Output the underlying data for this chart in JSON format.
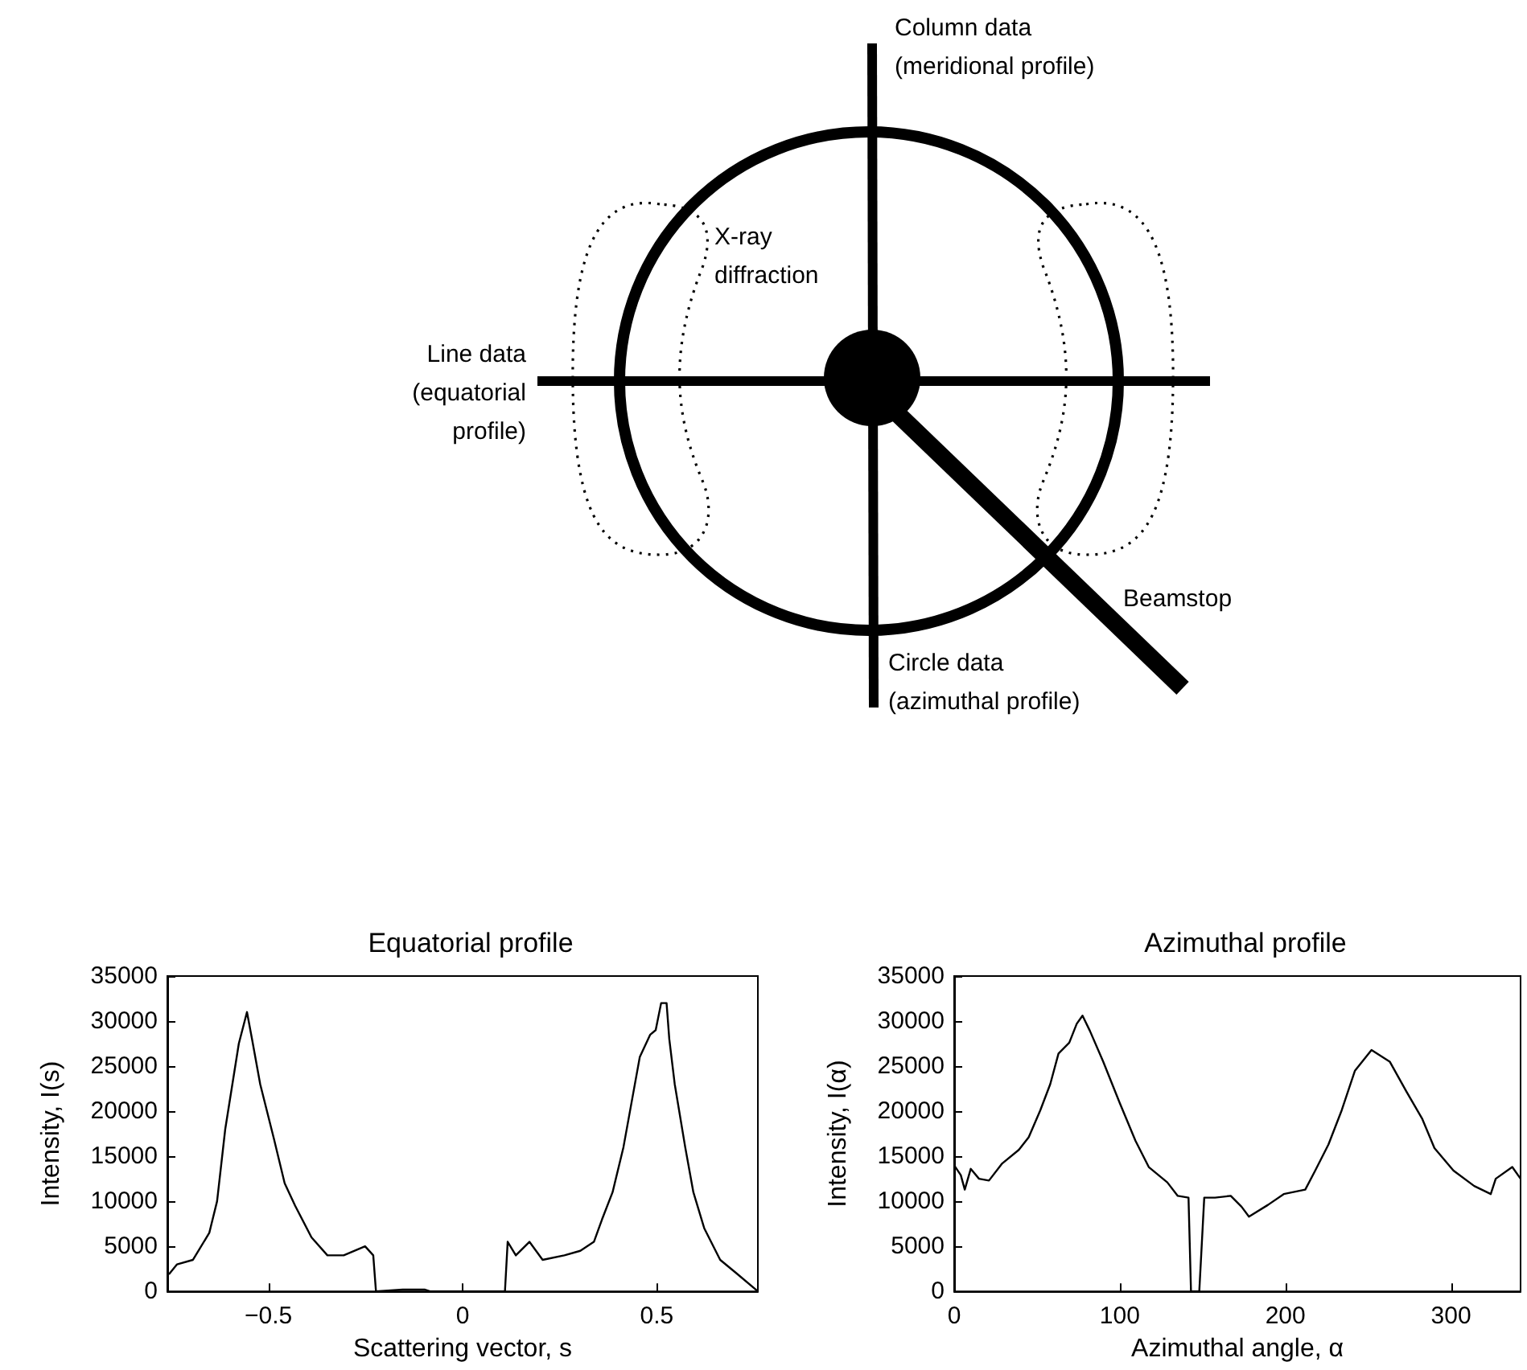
{
  "chart_data": [
    {
      "type": "other",
      "annotations": [
        "Column data\n(meridional profile)",
        "X-ray\ndiffraction",
        "Line data\n(equatorial\nprofile)",
        "Beamstop",
        "Circle data\n(azimuthal profile)"
      ]
    },
    {
      "type": "line",
      "title": "Equatorial profile",
      "xlabel": "Scattering vector, s",
      "ylabel": "Intensity, I(s)",
      "x": [
        -0.756,
        -0.735,
        -0.694,
        -0.652,
        -0.632,
        -0.611,
        -0.576,
        -0.555,
        -0.542,
        -0.521,
        -0.486,
        -0.458,
        -0.431,
        -0.389,
        -0.348,
        -0.306,
        -0.251,
        -0.23,
        -0.223,
        -0.154,
        -0.098,
        -0.084,
        0.109,
        0.116,
        0.137,
        0.172,
        0.206,
        0.262,
        0.303,
        0.338,
        0.359,
        0.386,
        0.414,
        0.435,
        0.456,
        0.483,
        0.497,
        0.511,
        0.525,
        0.532,
        0.546,
        0.573,
        0.594,
        0.622,
        0.663,
        0.705,
        0.76
      ],
      "series": [
        {
          "color": "#000000",
          "values": [
            1900,
            3000,
            3500,
            6500,
            10000,
            18000,
            27500,
            31000,
            28000,
            23000,
            17000,
            12000,
            9500,
            6000,
            4000,
            4000,
            5000,
            4000,
            0,
            200,
            200,
            0,
            0,
            5500,
            4000,
            5500,
            3500,
            4000,
            4500,
            5500,
            8000,
            11000,
            16000,
            21000,
            26000,
            28500,
            29000,
            32000,
            32000,
            28000,
            23000,
            16000,
            11000,
            7000,
            3500,
            2000,
            0
          ]
        }
      ],
      "xlim": [
        -0.76,
        0.76
      ],
      "xticks": [
        {
          "value": -0.5,
          "label": "−0.5"
        },
        0,
        0.5
      ],
      "ylim": [
        0,
        35000
      ],
      "yticks": [
        0,
        5000,
        10000,
        15000,
        20000,
        25000,
        30000,
        35000
      ],
      "marker": "none"
    },
    {
      "type": "line",
      "title": "Azimuthal profile",
      "xlabel": "Azimuthal angle, α",
      "ylabel": "Intensity, I(α)",
      "x": [
        0,
        4,
        6.4,
        10,
        15,
        21,
        29,
        39,
        45,
        52,
        58,
        63,
        69.5,
        74,
        77.5,
        82,
        90,
        100,
        109.5,
        117.5,
        128.7,
        135,
        141.5,
        143,
        148,
        151,
        157.5,
        167,
        173.5,
        178,
        189.5,
        199,
        212,
        218,
        226,
        234,
        242,
        252,
        263,
        273,
        282.5,
        290,
        301.5,
        314,
        324,
        327,
        337,
        342
      ],
      "series": [
        {
          "color": "#000000",
          "values": [
            14000,
            12900,
            11300,
            13600,
            12500,
            12300,
            14200,
            15700,
            17100,
            20100,
            23000,
            26400,
            27600,
            29700,
            30600,
            28900,
            25500,
            20900,
            16700,
            13800,
            12100,
            10600,
            10400,
            0,
            0,
            10400,
            10400,
            10600,
            9400,
            8300,
            9600,
            10800,
            11300,
            13400,
            16300,
            20100,
            24500,
            26800,
            25500,
            22200,
            19200,
            15900,
            13400,
            11700,
            10800,
            12500,
            13800,
            12500
          ]
        }
      ],
      "xlim": [
        0,
        342
      ],
      "xticks": [
        0,
        100,
        200,
        300
      ],
      "ylim": [
        0,
        35000
      ],
      "yticks": [
        0,
        5000,
        10000,
        15000,
        20000,
        25000,
        30000,
        35000
      ],
      "marker": "none"
    }
  ]
}
